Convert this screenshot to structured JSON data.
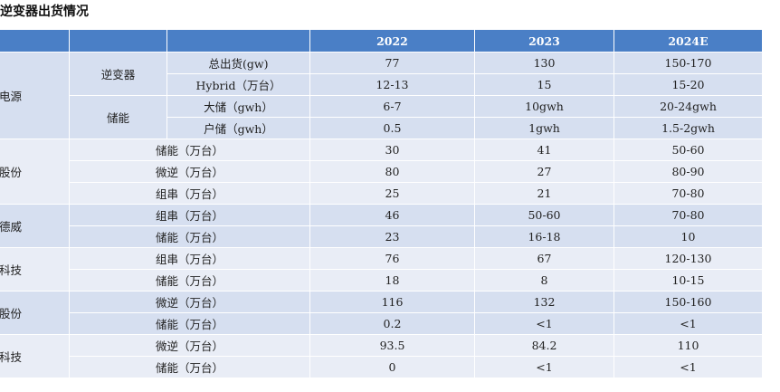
{
  "title": "逆变器出货情况",
  "headers": [
    "",
    "",
    "",
    "2022",
    "2023",
    "2024E"
  ],
  "companies": {
    "c1": "电源",
    "c2": "股份",
    "c3": "德威",
    "c4": "科技",
    "c5": "股份",
    "c6": "科技"
  },
  "subcats": {
    "inverter": "逆变器",
    "storage": "储能"
  },
  "rows": [
    {
      "item": "总出货(gw)",
      "y2022": "77",
      "y2023": "130",
      "y2024": "150-170"
    },
    {
      "item": "Hybrid（万台）",
      "y2022": "12-13",
      "y2023": "15",
      "y2024": "15-20"
    },
    {
      "item": "大储（gwh）",
      "y2022": "6-7",
      "y2023": "10gwh",
      "y2024": "20-24gwh"
    },
    {
      "item": "户储（gwh）",
      "y2022": "0.5",
      "y2023": "1gwh",
      "y2024": "1.5-2gwh"
    },
    {
      "item": "储能（万台）",
      "y2022": "30",
      "y2023": "41",
      "y2024": "50-60"
    },
    {
      "item": "微逆（万台）",
      "y2022": "80",
      "y2023": "27",
      "y2024": "80-90"
    },
    {
      "item": "组串（万台）",
      "y2022": "25",
      "y2023": "21",
      "y2024": "70-80"
    },
    {
      "item": "组串（万台）",
      "y2022": "46",
      "y2023": "50-60",
      "y2024": "70-80"
    },
    {
      "item": "储能（万台）",
      "y2022": "23",
      "y2023": "16-18",
      "y2024": "10"
    },
    {
      "item": "组串（万台）",
      "y2022": "76",
      "y2023": "67",
      "y2024": "120-130"
    },
    {
      "item": "储能（万台）",
      "y2022": "18",
      "y2023": "8",
      "y2024": "10-15"
    },
    {
      "item": "微逆（万台）",
      "y2022": "116",
      "y2023": "132",
      "y2024": "150-160"
    },
    {
      "item": "储能（万台）",
      "y2022": "0.2",
      "y2023": "<1",
      "y2024": "<1"
    },
    {
      "item": "微逆（万台）",
      "y2022": "93.5",
      "y2023": "84.2",
      "y2024": "110"
    },
    {
      "item": "储能（万台）",
      "y2022": "0",
      "y2023": "<1",
      "y2024": "<1"
    }
  ]
}
